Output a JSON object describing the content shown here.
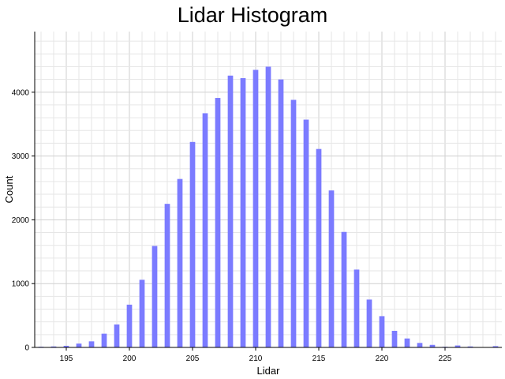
{
  "chart_data": {
    "type": "bar",
    "title": "Lidar Histogram",
    "xlabel": "Lidar",
    "ylabel": "Count",
    "x": [
      193,
      194,
      195,
      196,
      197,
      198,
      199,
      200,
      201,
      202,
      203,
      204,
      205,
      206,
      207,
      208,
      209,
      210,
      211,
      212,
      213,
      214,
      215,
      216,
      217,
      218,
      219,
      220,
      221,
      222,
      223,
      224,
      225,
      226,
      227,
      228,
      229
    ],
    "values": [
      10,
      15,
      25,
      60,
      95,
      215,
      360,
      670,
      1060,
      1590,
      2250,
      2640,
      3220,
      3670,
      3910,
      4260,
      4220,
      4350,
      4400,
      4200,
      3880,
      3570,
      3110,
      2460,
      1810,
      1220,
      750,
      490,
      260,
      140,
      70,
      40,
      10,
      30,
      15,
      5,
      20
    ],
    "xlim": [
      192.5,
      229.5
    ],
    "ylim": [
      0,
      4950
    ],
    "x_ticks": [
      195,
      200,
      205,
      210,
      215,
      220,
      225
    ],
    "y_ticks": [
      0,
      1000,
      2000,
      3000,
      4000
    ],
    "bar_color": "#7b7bff",
    "grid": true,
    "legend": "none"
  }
}
